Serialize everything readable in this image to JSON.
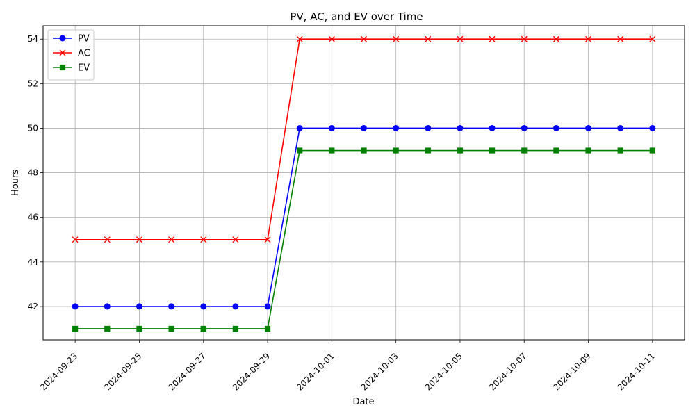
{
  "chart_data": {
    "type": "line",
    "title": "PV, AC, and EV over Time",
    "xlabel": "Date",
    "ylabel": "Hours",
    "x": [
      "2024-09-23",
      "2024-09-24",
      "2024-09-25",
      "2024-09-26",
      "2024-09-27",
      "2024-09-28",
      "2024-09-29",
      "2024-09-30",
      "2024-10-01",
      "2024-10-02",
      "2024-10-03",
      "2024-10-04",
      "2024-10-05",
      "2024-10-06",
      "2024-10-07",
      "2024-10-08",
      "2024-10-09",
      "2024-10-10",
      "2024-10-11"
    ],
    "x_ticks": [
      "2024-09-23",
      "2024-09-25",
      "2024-09-27",
      "2024-09-29",
      "2024-10-01",
      "2024-10-03",
      "2024-10-05",
      "2024-10-07",
      "2024-10-09",
      "2024-10-11"
    ],
    "xlim": [
      "2024-09-22",
      "2024-10-12"
    ],
    "ylim": [
      40.5,
      54.6
    ],
    "y_ticks": [
      42,
      44,
      46,
      48,
      50,
      52,
      54
    ],
    "grid": true,
    "legend_position": "top-left",
    "series": [
      {
        "name": "PV",
        "color": "#0000ff",
        "marker": "circle",
        "values": [
          42,
          42,
          42,
          42,
          42,
          42,
          42,
          50,
          50,
          50,
          50,
          50,
          50,
          50,
          50,
          50,
          50,
          50,
          50
        ]
      },
      {
        "name": "AC",
        "color": "#ff0000",
        "marker": "x",
        "values": [
          45,
          45,
          45,
          45,
          45,
          45,
          45,
          54,
          54,
          54,
          54,
          54,
          54,
          54,
          54,
          54,
          54,
          54,
          54
        ]
      },
      {
        "name": "EV",
        "color": "#008000",
        "marker": "square",
        "values": [
          41,
          41,
          41,
          41,
          41,
          41,
          41,
          49,
          49,
          49,
          49,
          49,
          49,
          49,
          49,
          49,
          49,
          49,
          49
        ]
      }
    ]
  }
}
